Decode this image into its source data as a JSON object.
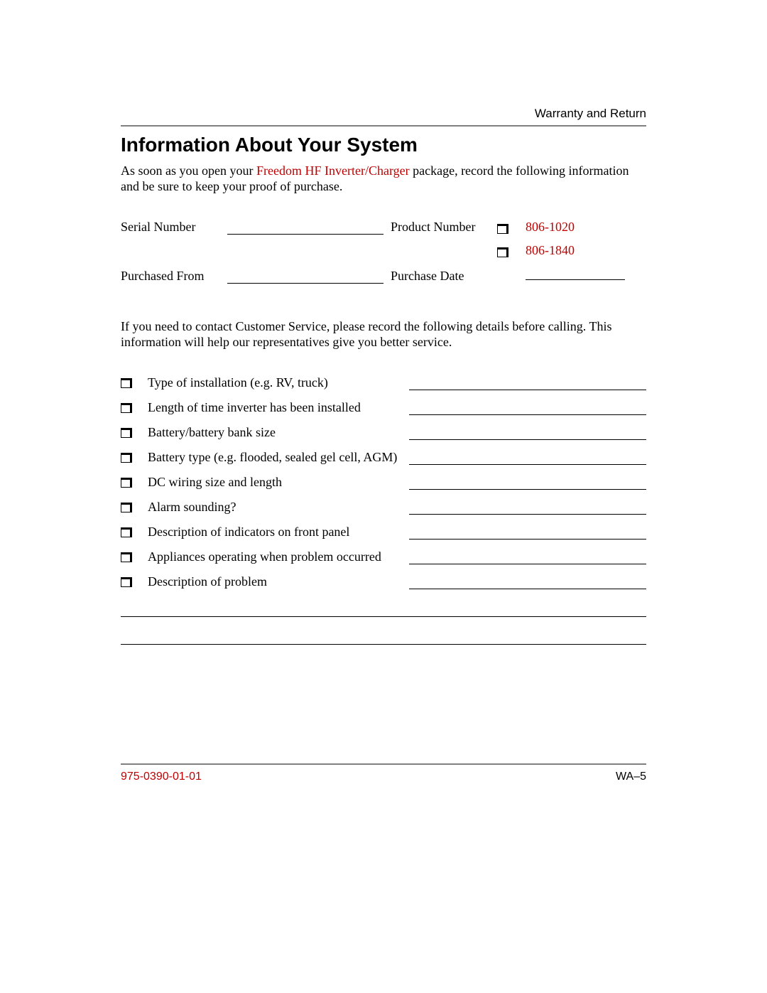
{
  "header": "Warranty and Return",
  "title": "Information About Your System",
  "intro_pre": "As soon as you open your ",
  "intro_red": "Freedom HF Inverter/Charger",
  "intro_post": " package, record the following information and be sure to keep your proof of purchase.",
  "labels": {
    "serial": "Serial Number",
    "product": "Product Number",
    "from": "Purchased From",
    "date": "Purchase Date"
  },
  "product_numbers": [
    "806-1020",
    "806-1840"
  ],
  "cs_para": "If you need to contact Customer Service, please record the following details before calling. This information will help our representatives give you better service.",
  "checklist": [
    "Type of installation (e.g. RV, truck)",
    "Length of time inverter has been installed",
    "Battery/battery bank size",
    "Battery type (e.g. flooded, sealed gel cell, AGM)",
    "DC wiring size and length",
    "Alarm sounding?",
    "Description of indicators on front panel",
    "Appliances operating when problem occurred",
    "Description of problem"
  ],
  "footer": {
    "left": "975-0390-01-01",
    "right": "WA–5"
  },
  "colors": {
    "accent": "#c00000",
    "rule": "#808080",
    "text": "#000000",
    "bg": "#ffffff"
  }
}
